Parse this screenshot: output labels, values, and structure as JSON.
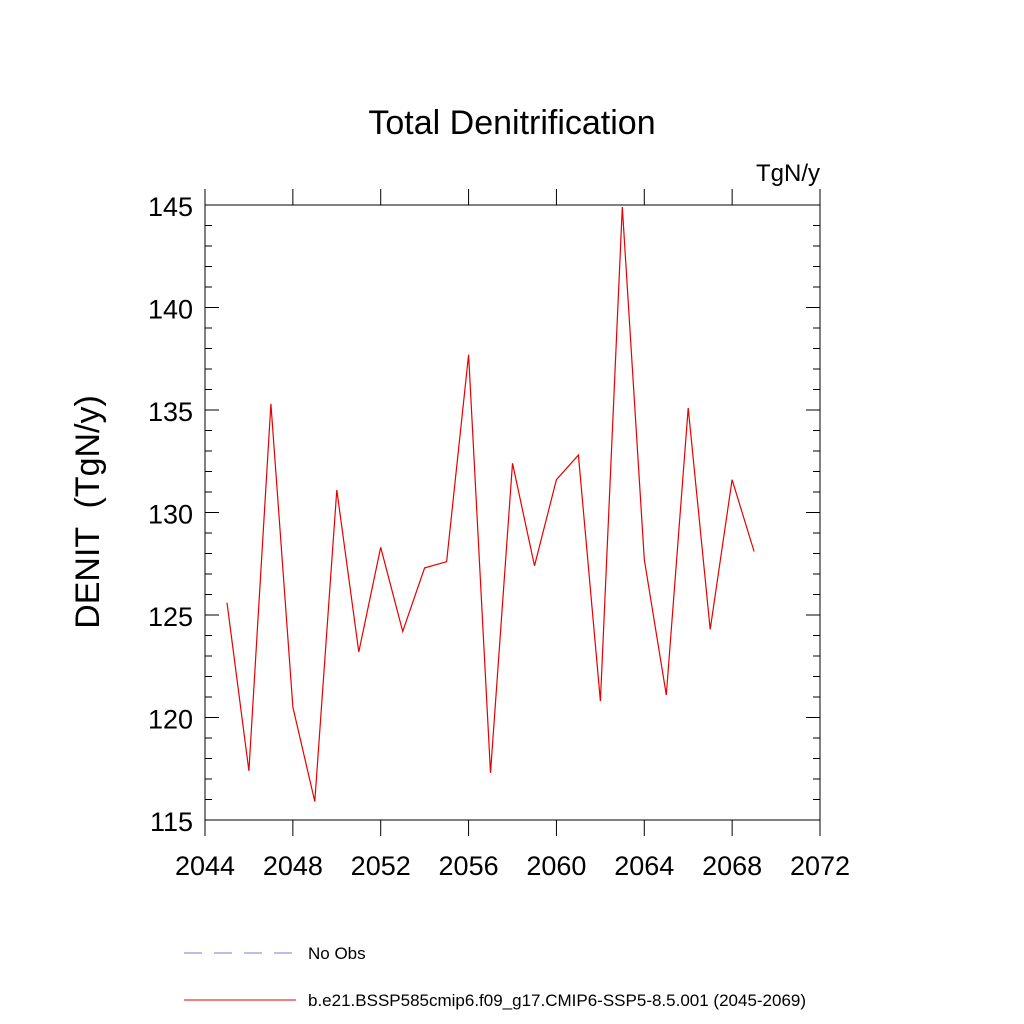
{
  "chart_data": {
    "type": "line",
    "title": "Total Denitrification",
    "units": "TgN/y",
    "ylabel": "DENIT  (TgN/y)",
    "xlabel": "",
    "xlim": [
      2044,
      2072
    ],
    "ylim": [
      115,
      145
    ],
    "xticks": [
      2044,
      2048,
      2052,
      2056,
      2060,
      2064,
      2068,
      2072
    ],
    "yticks": [
      115,
      120,
      125,
      130,
      135,
      140,
      145
    ],
    "grid": false,
    "series": [
      {
        "name": "b.e21.BSSP585cmip6.f09_g17.CMIP6-SSP5-8.5.001 (2045-2069)",
        "color": "#e60000",
        "style": "solid",
        "x": [
          2045,
          2046,
          2047,
          2048,
          2049,
          2050,
          2051,
          2052,
          2053,
          2054,
          2055,
          2056,
          2057,
          2058,
          2059,
          2060,
          2061,
          2062,
          2063,
          2064,
          2065,
          2066,
          2067,
          2068,
          2069
        ],
        "values": [
          125.6,
          117.4,
          135.3,
          120.5,
          115.9,
          131.1,
          123.2,
          128.3,
          124.2,
          127.3,
          127.6,
          137.7,
          117.3,
          132.4,
          127.4,
          131.6,
          132.8,
          120.8,
          144.9,
          127.7,
          121.1,
          135.1,
          124.3,
          131.6,
          128.1
        ]
      }
    ],
    "legend": {
      "placement": "bottom",
      "entries": [
        {
          "label": "No Obs",
          "color": "#7b7bd6",
          "style": "dashed"
        },
        {
          "label": "b.e21.BSSP585cmip6.f09_g17.CMIP6-SSP5-8.5.001 (2045-2069)",
          "color": "#e60000",
          "style": "solid"
        }
      ]
    }
  }
}
